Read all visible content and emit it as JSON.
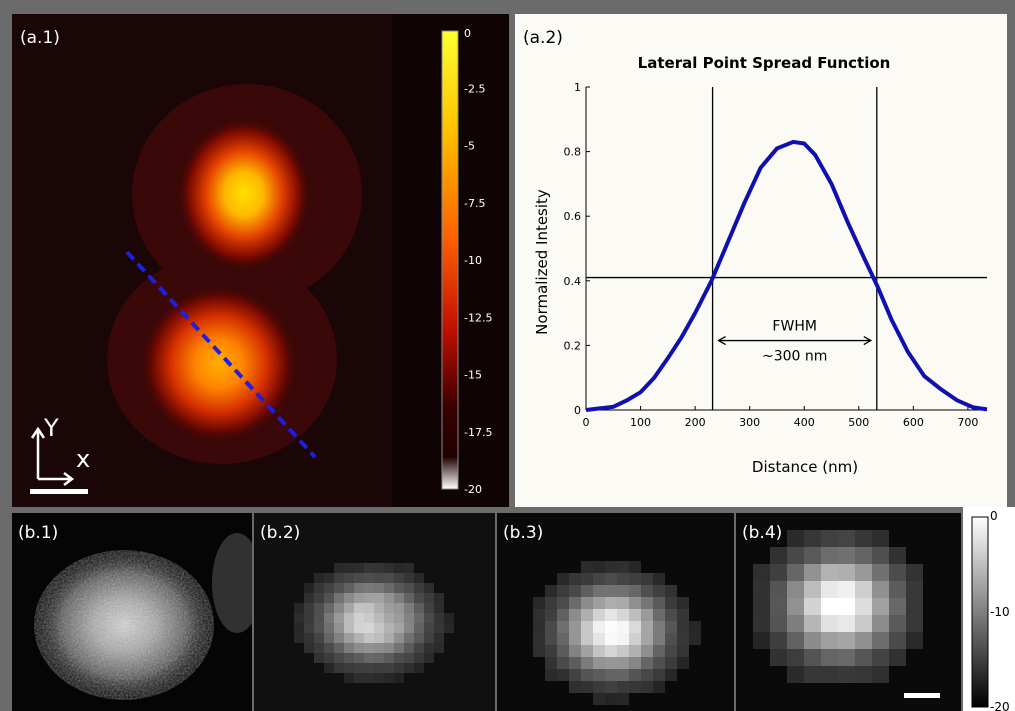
{
  "panels": {
    "a1_label": "(a.1)",
    "a2_label": "(a.2)",
    "b1_label": "(b.1)",
    "b2_label": "(b.2)",
    "b3_label": "(b.3)",
    "b4_label": "(b.4)"
  },
  "axes_indicator": {
    "y_label": "Y",
    "x_label": "x"
  },
  "colorbar_a": {
    "ticks": [
      "0",
      "-2.5",
      "-5",
      "-7.5",
      "-10",
      "-12.5",
      "-15",
      "-17.5",
      "-20"
    ],
    "min": -20,
    "max": 0
  },
  "colorbar_b": {
    "ticks": [
      "0",
      "-10",
      "-20"
    ],
    "min": -20,
    "max": 0
  },
  "colors": {
    "line_profile": "#1f1fe0",
    "psf_curve": "#1010b0",
    "chart_bg": "#fbfaf4"
  },
  "chart_data": {
    "type": "line",
    "title": "Lateral Point Spread Function",
    "xlabel": "Distance (nm)",
    "ylabel": "Normalized Intesity",
    "xlim": [
      0,
      735
    ],
    "ylim": [
      0,
      1
    ],
    "x_ticks": [
      "0",
      "100",
      "200",
      "300",
      "400",
      "500",
      "600",
      "700"
    ],
    "y_ticks": [
      "0",
      "0.2",
      "0.4",
      "0.6",
      "0.8",
      "1"
    ],
    "series": [
      {
        "x": [
          0,
          25,
          50,
          75,
          100,
          125,
          150,
          175,
          200,
          230,
          260,
          290,
          320,
          350,
          380,
          400,
          420,
          450,
          480,
          510,
          535,
          560,
          590,
          620,
          650,
          680,
          710,
          735
        ],
        "values": [
          0,
          0.005,
          0.01,
          0.03,
          0.055,
          0.1,
          0.16,
          0.225,
          0.3,
          0.4,
          0.52,
          0.64,
          0.75,
          0.81,
          0.83,
          0.825,
          0.79,
          0.7,
          0.58,
          0.47,
          0.38,
          0.28,
          0.18,
          0.105,
          0.065,
          0.03,
          0.008,
          0.002
        ]
      }
    ],
    "vlines": [
      232,
      533
    ],
    "hline": 0.41,
    "annotation": {
      "line1": "FWHM",
      "line2": "~300 nm"
    }
  }
}
